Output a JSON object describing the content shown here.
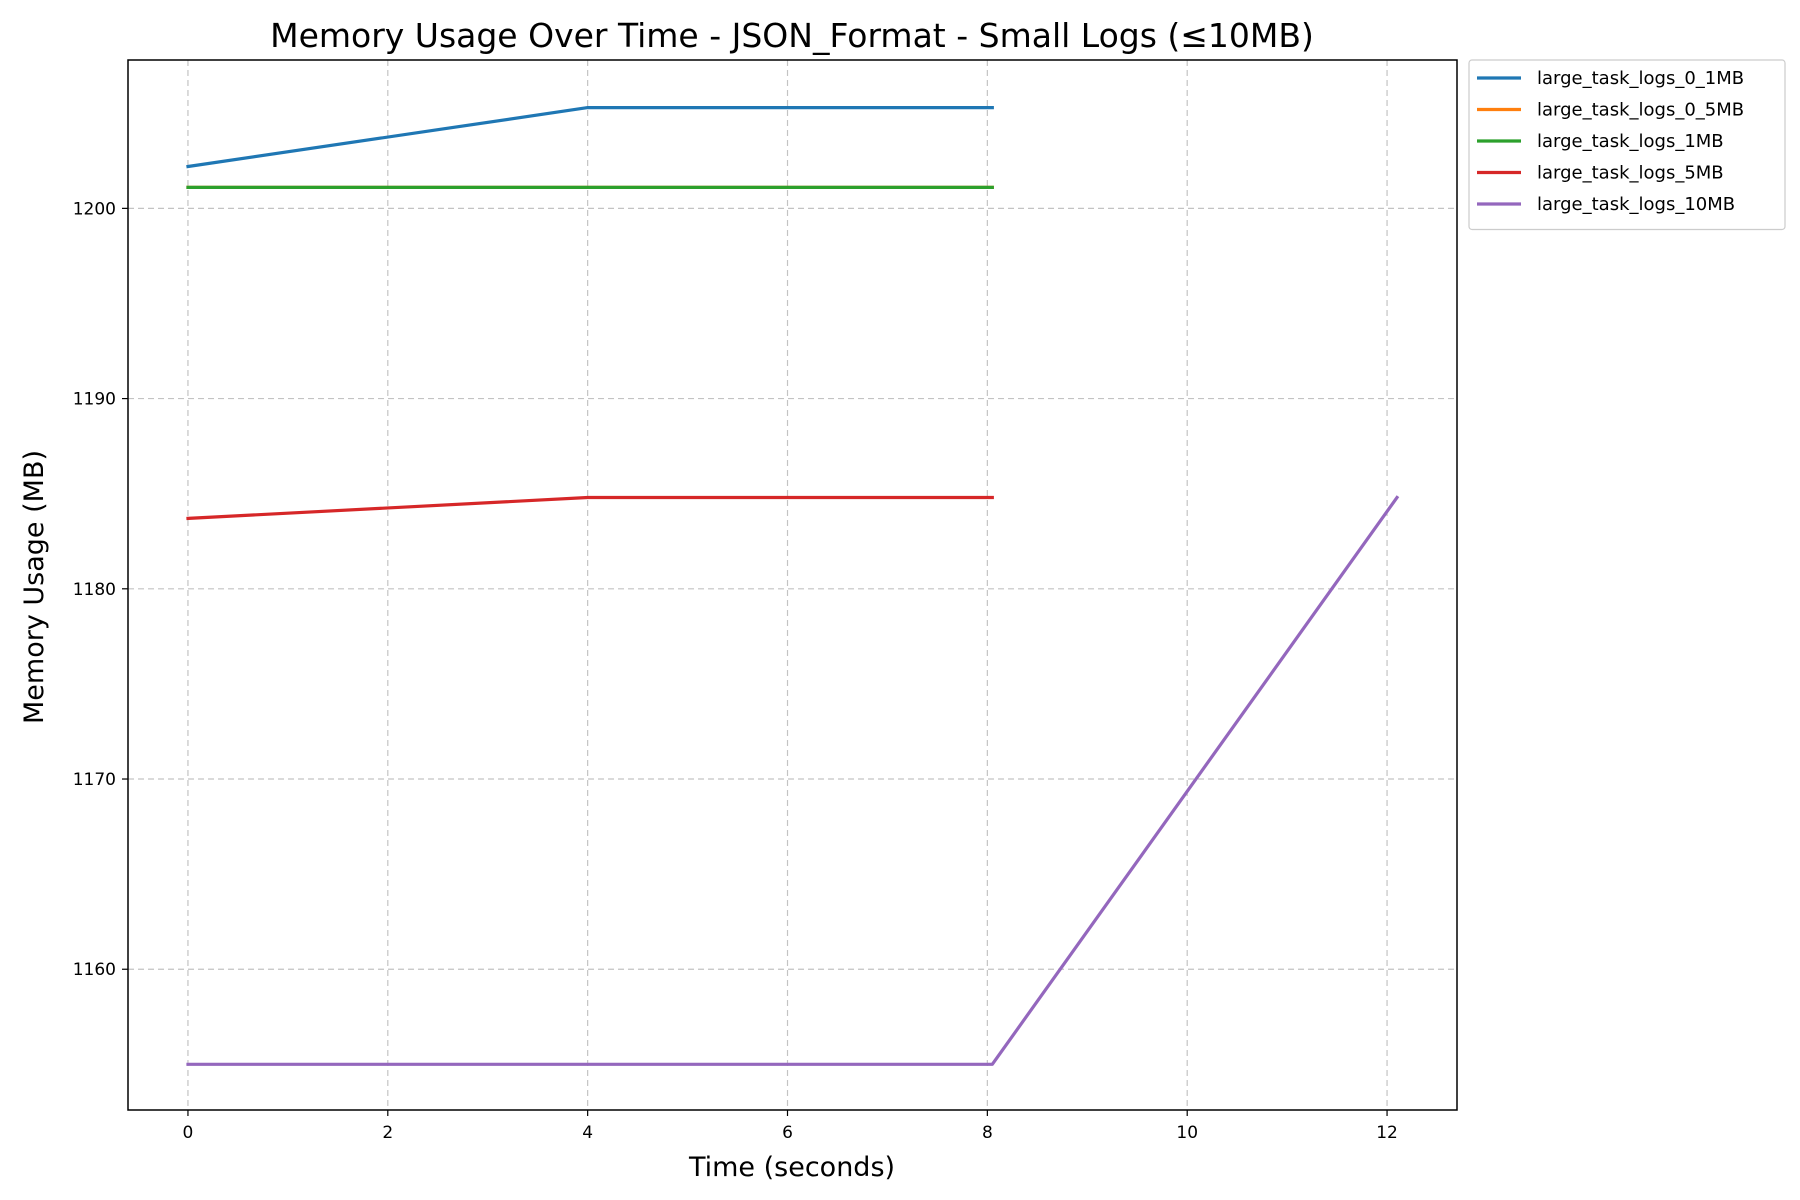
{
  "chart_data": {
    "type": "line",
    "title": "Memory Usage Over Time - JSON_Format - Small Logs (≤10MB)",
    "xlabel": "Time (seconds)",
    "ylabel": "Memory Usage (MB)",
    "xlim": [
      -0.6,
      12.7
    ],
    "ylim": [
      1152.6,
      1207.8
    ],
    "xticks": [
      0,
      2,
      4,
      6,
      8,
      10,
      12
    ],
    "yticks": [
      1160,
      1170,
      1180,
      1190,
      1200
    ],
    "grid": true,
    "legend_position": "outside upper right",
    "series": [
      {
        "name": "large_task_logs_0_1MB",
        "color": "#1f77b4",
        "x": [
          0,
          4,
          8.05
        ],
        "y": [
          1202.2,
          1205.3,
          1205.3
        ]
      },
      {
        "name": "large_task_logs_0_5MB",
        "color": "#ff7f0e",
        "x": [
          0,
          4,
          8.05
        ],
        "y": [
          1201.1,
          1201.1,
          1201.1
        ]
      },
      {
        "name": "large_task_logs_1MB",
        "color": "#2ca02c",
        "x": [
          0,
          4,
          8.05
        ],
        "y": [
          1201.1,
          1201.1,
          1201.1
        ]
      },
      {
        "name": "large_task_logs_5MB",
        "color": "#d62728",
        "x": [
          0,
          4,
          8.05
        ],
        "y": [
          1183.7,
          1184.8,
          1184.8
        ]
      },
      {
        "name": "large_task_logs_10MB",
        "color": "#9467bd",
        "x": [
          0,
          4,
          8.05,
          12.1
        ],
        "y": [
          1155.0,
          1155.0,
          1155.0,
          1184.8
        ]
      }
    ]
  }
}
